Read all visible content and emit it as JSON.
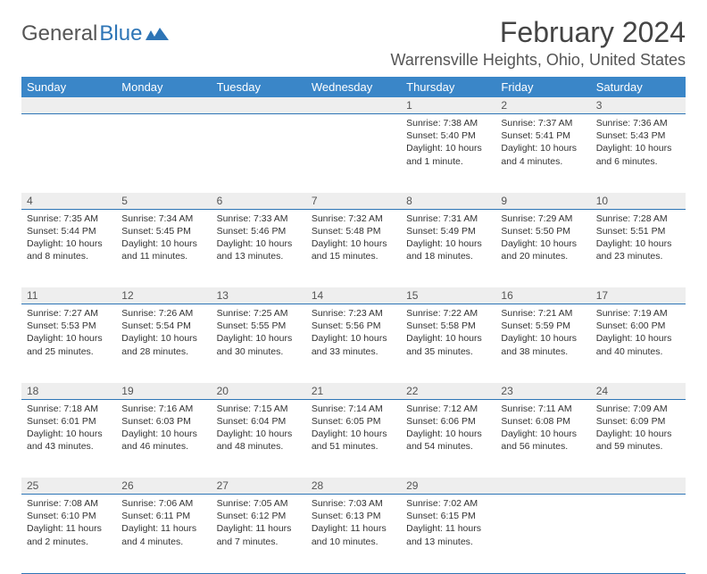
{
  "brand": {
    "part1": "General",
    "part2": "Blue"
  },
  "title": "February 2024",
  "location": "Warrensville Heights, Ohio, United States",
  "colors": {
    "header_bg": "#3a86c8",
    "rule": "#2e75b6",
    "daynum_bg": "#eeeeee",
    "text": "#333333",
    "title_text": "#444444",
    "background": "#ffffff"
  },
  "day_headers": [
    "Sunday",
    "Monday",
    "Tuesday",
    "Wednesday",
    "Thursday",
    "Friday",
    "Saturday"
  ],
  "weeks": [
    [
      {
        "n": "",
        "sunrise": "",
        "sunset": "",
        "daylight": ""
      },
      {
        "n": "",
        "sunrise": "",
        "sunset": "",
        "daylight": ""
      },
      {
        "n": "",
        "sunrise": "",
        "sunset": "",
        "daylight": ""
      },
      {
        "n": "",
        "sunrise": "",
        "sunset": "",
        "daylight": ""
      },
      {
        "n": "1",
        "sunrise": "Sunrise: 7:38 AM",
        "sunset": "Sunset: 5:40 PM",
        "daylight": "Daylight: 10 hours and 1 minute."
      },
      {
        "n": "2",
        "sunrise": "Sunrise: 7:37 AM",
        "sunset": "Sunset: 5:41 PM",
        "daylight": "Daylight: 10 hours and 4 minutes."
      },
      {
        "n": "3",
        "sunrise": "Sunrise: 7:36 AM",
        "sunset": "Sunset: 5:43 PM",
        "daylight": "Daylight: 10 hours and 6 minutes."
      }
    ],
    [
      {
        "n": "4",
        "sunrise": "Sunrise: 7:35 AM",
        "sunset": "Sunset: 5:44 PM",
        "daylight": "Daylight: 10 hours and 8 minutes."
      },
      {
        "n": "5",
        "sunrise": "Sunrise: 7:34 AM",
        "sunset": "Sunset: 5:45 PM",
        "daylight": "Daylight: 10 hours and 11 minutes."
      },
      {
        "n": "6",
        "sunrise": "Sunrise: 7:33 AM",
        "sunset": "Sunset: 5:46 PM",
        "daylight": "Daylight: 10 hours and 13 minutes."
      },
      {
        "n": "7",
        "sunrise": "Sunrise: 7:32 AM",
        "sunset": "Sunset: 5:48 PM",
        "daylight": "Daylight: 10 hours and 15 minutes."
      },
      {
        "n": "8",
        "sunrise": "Sunrise: 7:31 AM",
        "sunset": "Sunset: 5:49 PM",
        "daylight": "Daylight: 10 hours and 18 minutes."
      },
      {
        "n": "9",
        "sunrise": "Sunrise: 7:29 AM",
        "sunset": "Sunset: 5:50 PM",
        "daylight": "Daylight: 10 hours and 20 minutes."
      },
      {
        "n": "10",
        "sunrise": "Sunrise: 7:28 AM",
        "sunset": "Sunset: 5:51 PM",
        "daylight": "Daylight: 10 hours and 23 minutes."
      }
    ],
    [
      {
        "n": "11",
        "sunrise": "Sunrise: 7:27 AM",
        "sunset": "Sunset: 5:53 PM",
        "daylight": "Daylight: 10 hours and 25 minutes."
      },
      {
        "n": "12",
        "sunrise": "Sunrise: 7:26 AM",
        "sunset": "Sunset: 5:54 PM",
        "daylight": "Daylight: 10 hours and 28 minutes."
      },
      {
        "n": "13",
        "sunrise": "Sunrise: 7:25 AM",
        "sunset": "Sunset: 5:55 PM",
        "daylight": "Daylight: 10 hours and 30 minutes."
      },
      {
        "n": "14",
        "sunrise": "Sunrise: 7:23 AM",
        "sunset": "Sunset: 5:56 PM",
        "daylight": "Daylight: 10 hours and 33 minutes."
      },
      {
        "n": "15",
        "sunrise": "Sunrise: 7:22 AM",
        "sunset": "Sunset: 5:58 PM",
        "daylight": "Daylight: 10 hours and 35 minutes."
      },
      {
        "n": "16",
        "sunrise": "Sunrise: 7:21 AM",
        "sunset": "Sunset: 5:59 PM",
        "daylight": "Daylight: 10 hours and 38 minutes."
      },
      {
        "n": "17",
        "sunrise": "Sunrise: 7:19 AM",
        "sunset": "Sunset: 6:00 PM",
        "daylight": "Daylight: 10 hours and 40 minutes."
      }
    ],
    [
      {
        "n": "18",
        "sunrise": "Sunrise: 7:18 AM",
        "sunset": "Sunset: 6:01 PM",
        "daylight": "Daylight: 10 hours and 43 minutes."
      },
      {
        "n": "19",
        "sunrise": "Sunrise: 7:16 AM",
        "sunset": "Sunset: 6:03 PM",
        "daylight": "Daylight: 10 hours and 46 minutes."
      },
      {
        "n": "20",
        "sunrise": "Sunrise: 7:15 AM",
        "sunset": "Sunset: 6:04 PM",
        "daylight": "Daylight: 10 hours and 48 minutes."
      },
      {
        "n": "21",
        "sunrise": "Sunrise: 7:14 AM",
        "sunset": "Sunset: 6:05 PM",
        "daylight": "Daylight: 10 hours and 51 minutes."
      },
      {
        "n": "22",
        "sunrise": "Sunrise: 7:12 AM",
        "sunset": "Sunset: 6:06 PM",
        "daylight": "Daylight: 10 hours and 54 minutes."
      },
      {
        "n": "23",
        "sunrise": "Sunrise: 7:11 AM",
        "sunset": "Sunset: 6:08 PM",
        "daylight": "Daylight: 10 hours and 56 minutes."
      },
      {
        "n": "24",
        "sunrise": "Sunrise: 7:09 AM",
        "sunset": "Sunset: 6:09 PM",
        "daylight": "Daylight: 10 hours and 59 minutes."
      }
    ],
    [
      {
        "n": "25",
        "sunrise": "Sunrise: 7:08 AM",
        "sunset": "Sunset: 6:10 PM",
        "daylight": "Daylight: 11 hours and 2 minutes."
      },
      {
        "n": "26",
        "sunrise": "Sunrise: 7:06 AM",
        "sunset": "Sunset: 6:11 PM",
        "daylight": "Daylight: 11 hours and 4 minutes."
      },
      {
        "n": "27",
        "sunrise": "Sunrise: 7:05 AM",
        "sunset": "Sunset: 6:12 PM",
        "daylight": "Daylight: 11 hours and 7 minutes."
      },
      {
        "n": "28",
        "sunrise": "Sunrise: 7:03 AM",
        "sunset": "Sunset: 6:13 PM",
        "daylight": "Daylight: 11 hours and 10 minutes."
      },
      {
        "n": "29",
        "sunrise": "Sunrise: 7:02 AM",
        "sunset": "Sunset: 6:15 PM",
        "daylight": "Daylight: 11 hours and 13 minutes."
      },
      {
        "n": "",
        "sunrise": "",
        "sunset": "",
        "daylight": ""
      },
      {
        "n": "",
        "sunrise": "",
        "sunset": "",
        "daylight": ""
      }
    ]
  ]
}
